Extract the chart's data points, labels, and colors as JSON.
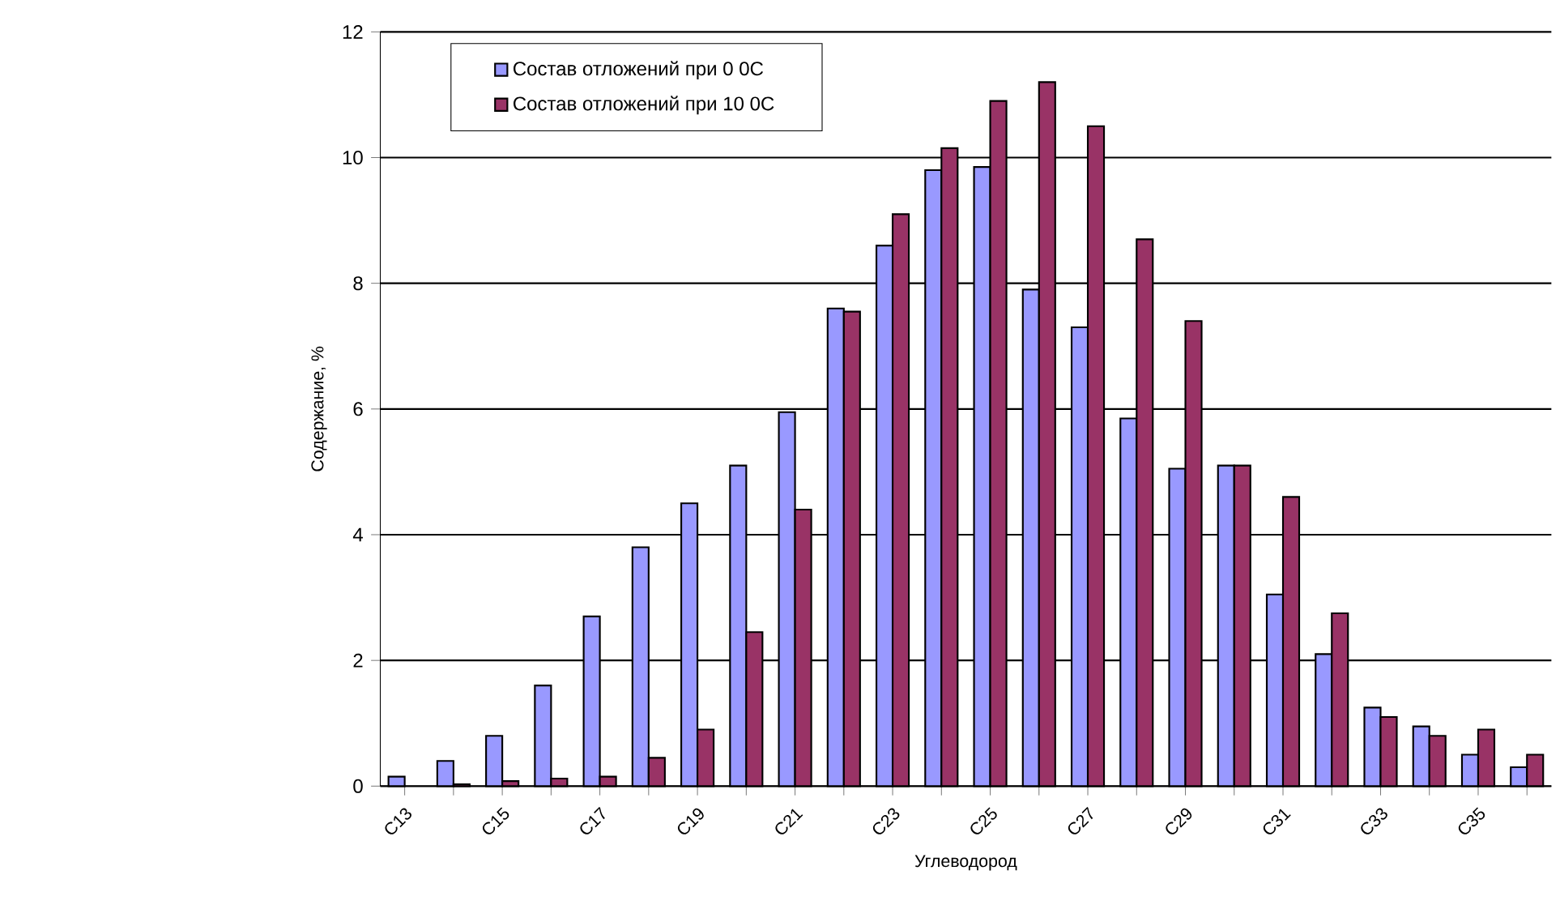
{
  "chart_data": {
    "type": "bar",
    "xlabel": "Углеводород",
    "ylabel": "Содержание, %",
    "categories": [
      "C13",
      null,
      "C15",
      null,
      "C17",
      null,
      "C19",
      null,
      "C21",
      null,
      "C23",
      null,
      "C25",
      null,
      "C27",
      null,
      "C29",
      null,
      "C31",
      null,
      "C33",
      null,
      "C35",
      null
    ],
    "series": [
      {
        "name": "Состав отложений при 0 0С",
        "color": "#9999ff",
        "values": [
          0.15,
          0.4,
          0.8,
          1.6,
          2.7,
          3.8,
          4.5,
          5.1,
          5.95,
          7.6,
          8.6,
          9.8,
          9.85,
          7.9,
          7.3,
          5.85,
          5.05,
          5.1,
          3.05,
          2.1,
          1.25,
          0.95,
          0.5,
          0.3
        ]
      },
      {
        "name": "Состав отложений при 10 0С",
        "color": "#993366",
        "values": [
          null,
          0.03,
          0.08,
          0.12,
          0.15,
          0.45,
          0.9,
          2.45,
          4.4,
          7.55,
          9.1,
          10.15,
          10.9,
          11.2,
          10.5,
          8.7,
          7.4,
          5.1,
          4.6,
          2.75,
          1.1,
          0.8,
          0.9,
          0.5
        ]
      }
    ],
    "ylim": [
      0,
      12
    ],
    "yticks": [
      0,
      2,
      4,
      6,
      8,
      10,
      12
    ],
    "grid": "y",
    "legend": "top left"
  }
}
